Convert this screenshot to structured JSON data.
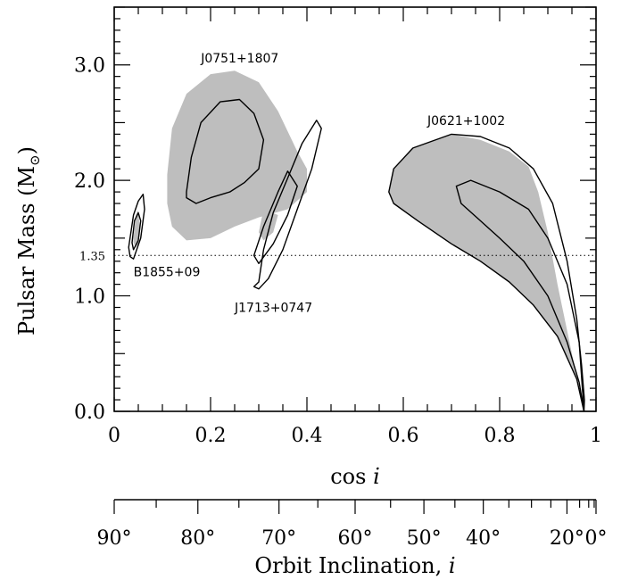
{
  "chart_data": {
    "type": "line",
    "title": "",
    "xlabel": "cos",
    "xlabel_italic": "i",
    "ylabel": "Pulsar Mass (M",
    "ylabel_sub": "⊙",
    "ylabel_close": ")",
    "secondary_xlabel": "Orbit Inclination, ",
    "secondary_xlabel_italic": "i",
    "xlim": [
      0,
      1
    ],
    "ylim": [
      0,
      3.5
    ],
    "x_ticks": [
      {
        "value": 0,
        "label": "0"
      },
      {
        "value": 0.2,
        "label": "0.2"
      },
      {
        "value": 0.4,
        "label": "0.4"
      },
      {
        "value": 0.6,
        "label": "0.6"
      },
      {
        "value": 0.8,
        "label": "0.8"
      },
      {
        "value": 1,
        "label": "1"
      }
    ],
    "y_ticks": [
      {
        "value": 0,
        "label": "0.0"
      },
      {
        "value": 1,
        "label": "1.0"
      },
      {
        "value": 2,
        "label": "2.0"
      },
      {
        "value": 3,
        "label": "3.0"
      }
    ],
    "secondary_major_ticks": [
      {
        "deg": 90,
        "label": "90°"
      },
      {
        "deg": 80,
        "label": "80°"
      },
      {
        "deg": 70,
        "label": "70°"
      },
      {
        "deg": 60,
        "label": "60°"
      },
      {
        "deg": 50,
        "label": "50°"
      },
      {
        "deg": 40,
        "label": "40°"
      },
      {
        "deg": 20,
        "label": "20°"
      },
      {
        "deg": 0,
        "label": "0°"
      }
    ],
    "secondary_minor_ticks": [
      85,
      75,
      65,
      55,
      45,
      35,
      30,
      25,
      15,
      10,
      5
    ],
    "reference_line": {
      "y": 1.35,
      "label": "1.35",
      "style": "dotted"
    },
    "series": [
      {
        "name": "J0751+1807",
        "label_at": [
          0.18,
          3.02
        ],
        "shaded": [
          [
            0.11,
            2.05
          ],
          [
            0.12,
            2.45
          ],
          [
            0.15,
            2.75
          ],
          [
            0.2,
            2.92
          ],
          [
            0.25,
            2.95
          ],
          [
            0.3,
            2.85
          ],
          [
            0.34,
            2.6
          ],
          [
            0.38,
            2.25
          ],
          [
            0.4,
            2.1
          ],
          [
            0.4,
            1.9
          ],
          [
            0.36,
            1.75
          ],
          [
            0.3,
            1.68
          ],
          [
            0.25,
            1.6
          ],
          [
            0.2,
            1.5
          ],
          [
            0.15,
            1.48
          ],
          [
            0.12,
            1.6
          ],
          [
            0.11,
            1.8
          ]
        ],
        "contours": [
          [
            [
              0.15,
              1.9
            ],
            [
              0.16,
              2.2
            ],
            [
              0.18,
              2.5
            ],
            [
              0.22,
              2.68
            ],
            [
              0.26,
              2.7
            ],
            [
              0.29,
              2.58
            ],
            [
              0.31,
              2.35
            ],
            [
              0.3,
              2.1
            ],
            [
              0.27,
              1.98
            ],
            [
              0.24,
              1.9
            ],
            [
              0.2,
              1.85
            ],
            [
              0.17,
              1.8
            ],
            [
              0.15,
              1.85
            ]
          ]
        ]
      },
      {
        "name": "B1855+09",
        "label_at": [
          0.04,
          1.17
        ],
        "shaded": [
          [
            0.04,
            1.5
          ],
          [
            0.045,
            1.7
          ],
          [
            0.05,
            1.74
          ],
          [
            0.053,
            1.6
          ],
          [
            0.05,
            1.45
          ],
          [
            0.045,
            1.42
          ],
          [
            0.04,
            1.46
          ]
        ],
        "contours": [
          [
            [
              0.03,
              1.42
            ],
            [
              0.04,
              1.7
            ],
            [
              0.05,
              1.82
            ],
            [
              0.06,
              1.88
            ],
            [
              0.063,
              1.75
            ],
            [
              0.055,
              1.5
            ],
            [
              0.04,
              1.32
            ],
            [
              0.033,
              1.34
            ]
          ],
          [
            [
              0.037,
              1.46
            ],
            [
              0.042,
              1.65
            ],
            [
              0.05,
              1.72
            ],
            [
              0.055,
              1.65
            ],
            [
              0.05,
              1.48
            ],
            [
              0.04,
              1.4
            ]
          ]
        ]
      },
      {
        "name": "J1713+0747",
        "label_at": [
          0.25,
          0.86
        ],
        "shaded": [
          [
            0.31,
            1.75
          ],
          [
            0.34,
            1.7
          ],
          [
            0.33,
            1.55
          ],
          [
            0.31,
            1.48
          ],
          [
            0.3,
            1.55
          ]
        ],
        "contours": [
          [
            [
              0.3,
              1.12
            ],
            [
              0.31,
              1.4
            ],
            [
              0.33,
              1.72
            ],
            [
              0.36,
              2.02
            ],
            [
              0.39,
              2.32
            ],
            [
              0.42,
              2.52
            ],
            [
              0.43,
              2.45
            ],
            [
              0.41,
              2.1
            ],
            [
              0.38,
              1.75
            ],
            [
              0.35,
              1.4
            ],
            [
              0.32,
              1.15
            ],
            [
              0.3,
              1.06
            ],
            [
              0.29,
              1.08
            ]
          ],
          [
            [
              0.29,
              1.35
            ],
            [
              0.31,
              1.6
            ],
            [
              0.34,
              1.9
            ],
            [
              0.36,
              2.08
            ],
            [
              0.38,
              1.95
            ],
            [
              0.36,
              1.7
            ],
            [
              0.33,
              1.45
            ],
            [
              0.3,
              1.28
            ]
          ]
        ]
      },
      {
        "name": "J0621+1002",
        "label_at": [
          0.65,
          2.48
        ],
        "shaded": [
          [
            0.57,
            1.9
          ],
          [
            0.58,
            2.1
          ],
          [
            0.62,
            2.28
          ],
          [
            0.7,
            2.4
          ],
          [
            0.76,
            2.35
          ],
          [
            0.82,
            2.25
          ],
          [
            0.86,
            2.12
          ],
          [
            0.88,
            1.9
          ],
          [
            0.9,
            1.55
          ],
          [
            0.92,
            1.1
          ],
          [
            0.94,
            0.7
          ],
          [
            0.96,
            0.3
          ],
          [
            0.975,
            0
          ],
          [
            0.96,
            0.28
          ],
          [
            0.92,
            0.65
          ],
          [
            0.87,
            0.92
          ],
          [
            0.82,
            1.12
          ],
          [
            0.76,
            1.3
          ],
          [
            0.7,
            1.45
          ],
          [
            0.63,
            1.65
          ],
          [
            0.58,
            1.8
          ]
        ],
        "contours": [
          [
            [
              0.57,
              1.9
            ],
            [
              0.58,
              2.1
            ],
            [
              0.62,
              2.28
            ],
            [
              0.7,
              2.4
            ],
            [
              0.76,
              2.38
            ],
            [
              0.82,
              2.28
            ],
            [
              0.87,
              2.1
            ],
            [
              0.91,
              1.8
            ],
            [
              0.94,
              1.3
            ],
            [
              0.96,
              0.8
            ],
            [
              0.97,
              0.4
            ],
            [
              0.976,
              0.1
            ],
            [
              0.975,
              0
            ],
            [
              0.96,
              0.28
            ],
            [
              0.92,
              0.65
            ],
            [
              0.87,
              0.92
            ],
            [
              0.82,
              1.12
            ],
            [
              0.76,
              1.3
            ],
            [
              0.7,
              1.45
            ],
            [
              0.63,
              1.65
            ],
            [
              0.58,
              1.8
            ],
            [
              0.57,
              1.9
            ]
          ],
          [
            [
              0.975,
              0
            ],
            [
              0.965,
              0.6
            ],
            [
              0.94,
              1.1
            ],
            [
              0.9,
              1.5
            ],
            [
              0.86,
              1.75
            ],
            [
              0.8,
              1.9
            ],
            [
              0.74,
              2.0
            ],
            [
              0.71,
              1.95
            ],
            [
              0.72,
              1.8
            ],
            [
              0.76,
              1.65
            ],
            [
              0.8,
              1.5
            ],
            [
              0.85,
              1.3
            ],
            [
              0.9,
              1.0
            ],
            [
              0.94,
              0.6
            ],
            [
              0.965,
              0.25
            ],
            [
              0.975,
              0
            ]
          ]
        ]
      }
    ]
  }
}
